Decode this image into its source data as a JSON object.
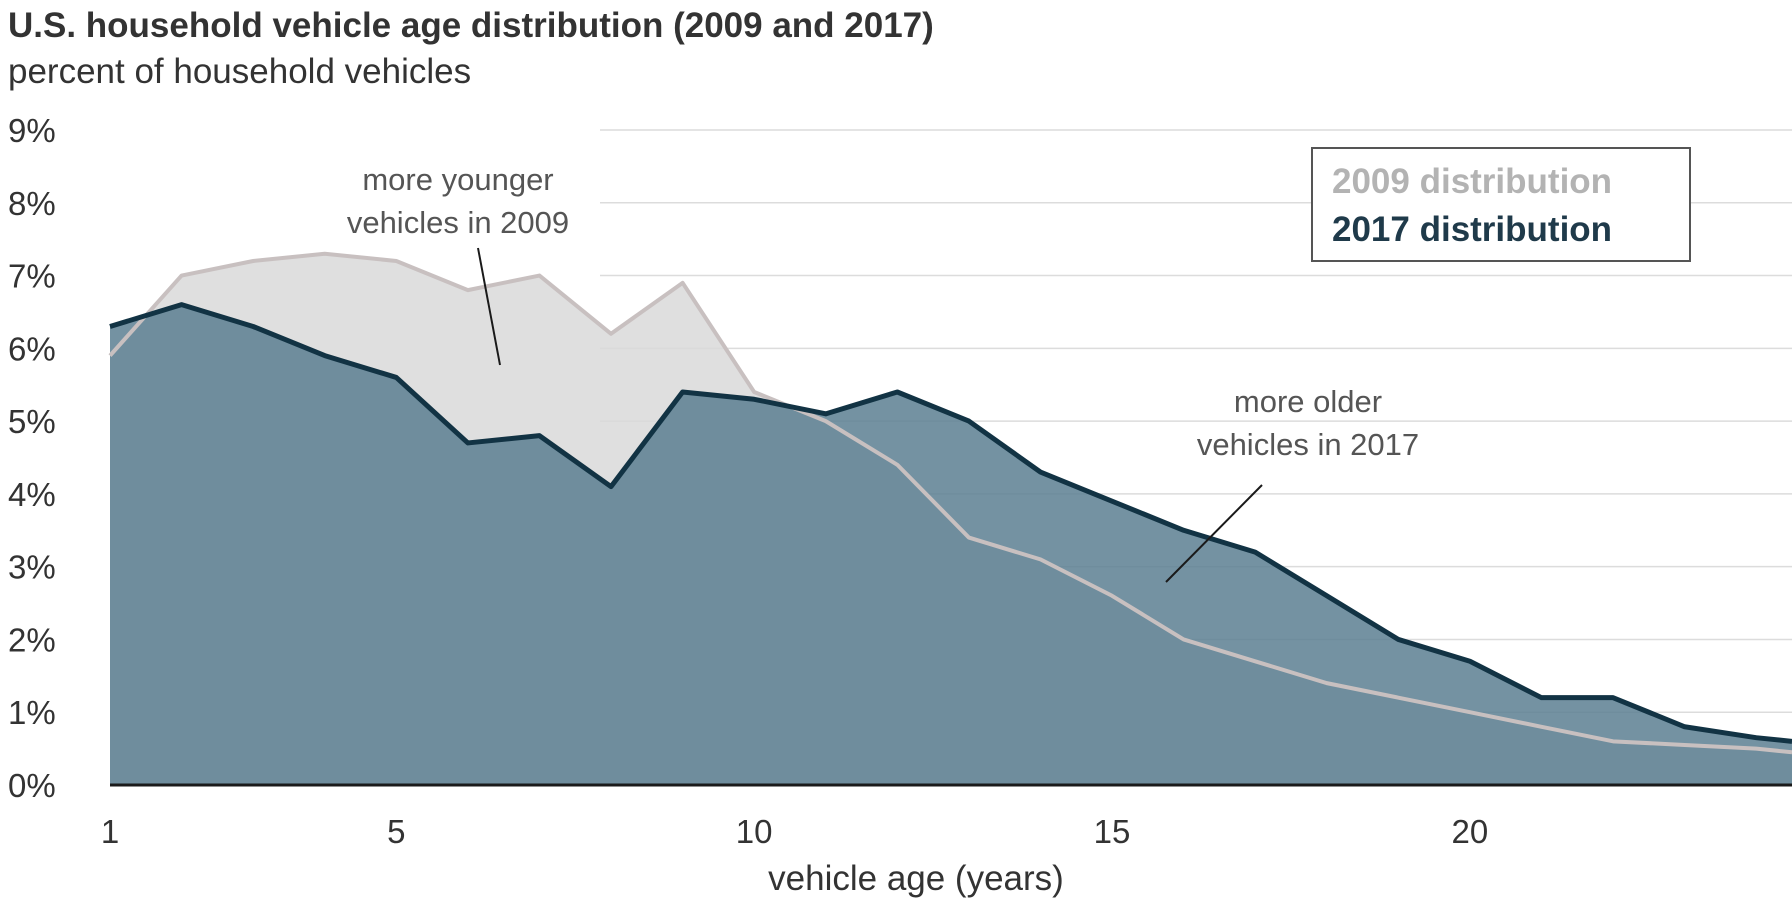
{
  "chart_data": {
    "type": "area",
    "title": "U.S. household vehicle age distribution (2009 and 2017)",
    "subtitle": "percent of household vehicles",
    "xlabel": "vehicle age (years)",
    "ylabel": "",
    "xlim": [
      1,
      24.5
    ],
    "ylim": [
      0,
      9
    ],
    "x_ticks": [
      1,
      5,
      10,
      15,
      20
    ],
    "y_ticks": [
      0,
      1,
      2,
      3,
      4,
      5,
      6,
      7,
      8,
      9
    ],
    "y_tick_labels": [
      "0%",
      "1%",
      "2%",
      "3%",
      "4%",
      "5%",
      "6%",
      "7%",
      "8%",
      "9%"
    ],
    "grid": true,
    "legend_position": "top-right",
    "x": [
      1,
      2,
      3,
      4,
      5,
      6,
      7,
      8,
      9,
      10,
      11,
      12,
      13,
      14,
      15,
      16,
      17,
      18,
      19,
      20,
      21,
      22,
      23,
      24,
      24.5
    ],
    "series": [
      {
        "name": "2009 distribution",
        "color": "#d9d9d9",
        "values": [
          5.9,
          7.0,
          7.2,
          7.3,
          7.2,
          6.8,
          7.0,
          6.2,
          6.9,
          5.4,
          5.0,
          4.4,
          3.4,
          3.1,
          2.6,
          2.0,
          1.7,
          1.4,
          1.2,
          1.0,
          0.8,
          0.6,
          0.55,
          0.5,
          0.45
        ]
      },
      {
        "name": "2017 distribution",
        "color": "#5c7f92",
        "values": [
          6.3,
          6.6,
          6.3,
          5.9,
          5.6,
          4.7,
          4.8,
          4.1,
          5.4,
          5.3,
          5.1,
          5.4,
          5.0,
          4.3,
          3.9,
          3.5,
          3.2,
          2.6,
          2.0,
          1.7,
          1.2,
          1.2,
          0.8,
          0.65,
          0.6
        ]
      }
    ],
    "annotations": [
      {
        "lines": [
          "more younger",
          "vehicles in 2009"
        ]
      },
      {
        "lines": [
          "more older",
          "vehicles in 2017"
        ]
      }
    ]
  }
}
